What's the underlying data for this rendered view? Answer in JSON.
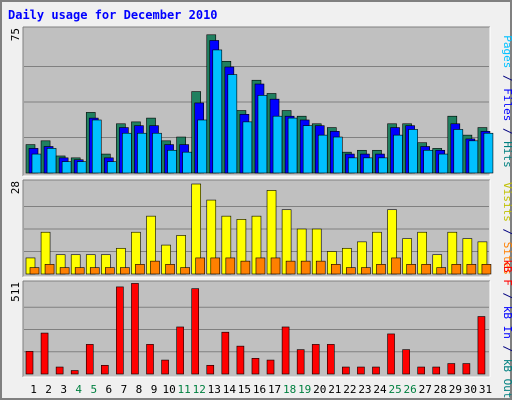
{
  "chart_data": {
    "type": "bar",
    "title": "Daily usage for December 2010",
    "categories": [
      "1",
      "2",
      "3",
      "4",
      "5",
      "6",
      "7",
      "8",
      "9",
      "10",
      "11",
      "12",
      "13",
      "14",
      "15",
      "16",
      "17",
      "18",
      "19",
      "20",
      "21",
      "22",
      "23",
      "24",
      "25",
      "26",
      "27",
      "28",
      "29",
      "30",
      "31"
    ],
    "weekend_days": [
      "4",
      "5",
      "11",
      "12",
      "18",
      "19",
      "25",
      "26"
    ],
    "panels": [
      {
        "name": "hits-files-pages",
        "scale_label": "75",
        "ymax": 75,
        "side_label": [
          {
            "text": "Pages",
            "color": "#00c0ff"
          },
          {
            "text": " / ",
            "color": "#000080"
          },
          {
            "text": "Files",
            "color": "#0000ff"
          },
          {
            "text": " / ",
            "color": "#000080"
          },
          {
            "text": "Hits",
            "color": "#008080"
          }
        ],
        "series": [
          {
            "name": "Hits",
            "color": "#208060",
            "values": [
              15,
              17,
              9,
              8,
              32,
              10,
              26,
              27,
              29,
              17,
              19,
              43,
              73,
              59,
              33,
              49,
              42,
              33,
              30,
              26,
              24,
              11,
              12,
              12,
              26,
              26,
              16,
              13,
              30,
              20,
              24
            ]
          },
          {
            "name": "Files",
            "color": "#0000ff",
            "values": [
              13,
              14,
              8,
              7,
              29,
              8,
              24,
              25,
              25,
              15,
              15,
              37,
              70,
              56,
              31,
              47,
              39,
              30,
              28,
              25,
              22,
              10,
              10,
              10,
              24,
              25,
              14,
              12,
              26,
              18,
              22
            ]
          },
          {
            "name": "Pages",
            "color": "#00c0ff",
            "values": [
              10,
              13,
              6,
              6,
              28,
              6,
              21,
              21,
              21,
              12,
              11,
              28,
              65,
              52,
              27,
              41,
              30,
              29,
              25,
              20,
              19,
              8,
              8,
              8,
              20,
              23,
              12,
              10,
              23,
              17,
              21
            ]
          }
        ]
      },
      {
        "name": "visits-sites",
        "scale_label": "28",
        "ymax": 28,
        "side_label": [
          {
            "text": "Visits",
            "color": "#c0c000"
          },
          {
            "text": " / ",
            "color": "#000080"
          },
          {
            "text": "Sites",
            "color": "#ff8000"
          }
        ],
        "series": [
          {
            "name": "Visits",
            "color": "#ffff00",
            "values": [
              5,
              13,
              6,
              6,
              6,
              6,
              8,
              13,
              18,
              9,
              12,
              28,
              23,
              18,
              17,
              18,
              26,
              20,
              14,
              14,
              7,
              8,
              10,
              13,
              20,
              11,
              13,
              6,
              13,
              11,
              10
            ]
          },
          {
            "name": "Sites",
            "color": "#ff8000",
            "values": [
              2,
              3,
              2,
              2,
              2,
              2,
              2,
              3,
              4,
              3,
              2,
              5,
              5,
              5,
              4,
              5,
              5,
              4,
              4,
              4,
              3,
              2,
              2,
              3,
              5,
              3,
              3,
              2,
              3,
              3,
              3
            ]
          }
        ]
      },
      {
        "name": "kbytes",
        "scale_label": "511",
        "ymax": 511,
        "side_label": [
          {
            "text": "kB F",
            "color": "#ff0000"
          },
          {
            "text": " / ",
            "color": "#000080"
          },
          {
            "text": "kB In",
            "color": "#0000ff"
          },
          {
            "text": " / ",
            "color": "#000080"
          },
          {
            "text": "kB Out",
            "color": "#008080"
          }
        ],
        "series": [
          {
            "name": "kB F",
            "color": "#ff0000",
            "values": [
              130,
              235,
              40,
              20,
              170,
              50,
              500,
              520,
              170,
              80,
              270,
              490,
              50,
              240,
              160,
              90,
              80,
              270,
              140,
              170,
              170,
              40,
              40,
              40,
              230,
              140,
              40,
              40,
              60,
              60,
              330
            ]
          }
        ]
      }
    ]
  }
}
